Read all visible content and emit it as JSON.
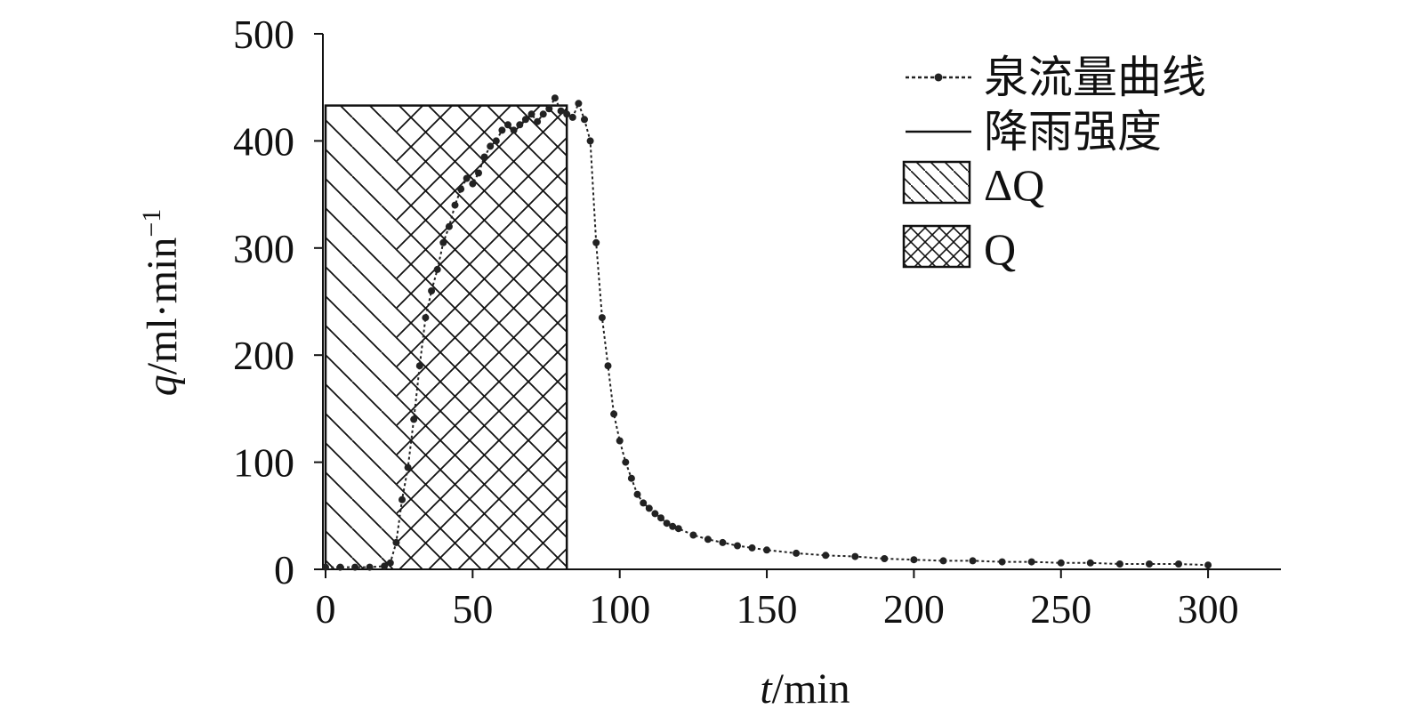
{
  "chart_data": {
    "type": "line",
    "xlabel": {
      "var": "t",
      "unit": "/min"
    },
    "ylabel": {
      "var": "q",
      "unit": "/ml·min",
      "sup": "−1"
    },
    "xlim": [
      0,
      325
    ],
    "ylim": [
      0,
      500
    ],
    "xticks": [
      "0",
      "50",
      "100",
      "150",
      "200",
      "250",
      "300"
    ],
    "xtick_values": [
      0,
      50,
      100,
      150,
      200,
      250,
      300
    ],
    "yticks": [
      "0",
      "100",
      "200",
      "300",
      "400",
      "500"
    ],
    "ytick_values": [
      0,
      100,
      200,
      300,
      400,
      500
    ],
    "legend_position": "top-right",
    "legend": {
      "flow": "泉流量曲线",
      "rain": "降雨强度",
      "dq": "ΔQ",
      "q": "Q"
    },
    "rainfall": {
      "start": 0,
      "end": 82,
      "intensity": 433
    },
    "flow_curve": {
      "x": [
        0,
        5,
        10,
        15,
        20,
        22,
        24,
        26,
        28,
        30,
        32,
        34,
        36,
        38,
        40,
        42,
        44,
        46,
        48,
        50,
        52,
        54,
        56,
        58,
        60,
        62,
        64,
        66,
        68,
        70,
        72,
        74,
        76,
        78,
        80,
        82,
        84,
        86,
        88,
        90,
        92,
        94,
        96,
        98,
        100,
        102,
        104,
        106,
        108,
        110,
        112,
        114,
        116,
        118,
        120,
        125,
        130,
        135,
        140,
        145,
        150,
        160,
        170,
        180,
        190,
        200,
        210,
        220,
        230,
        240,
        250,
        260,
        270,
        280,
        290,
        300
      ],
      "y": [
        2,
        2,
        2,
        2,
        3,
        6,
        25,
        65,
        95,
        140,
        190,
        235,
        260,
        280,
        305,
        320,
        340,
        355,
        365,
        360,
        370,
        385,
        395,
        400,
        410,
        415,
        410,
        415,
        420,
        425,
        418,
        425,
        430,
        440,
        428,
        425,
        422,
        435,
        420,
        400,
        305,
        235,
        190,
        145,
        120,
        100,
        85,
        70,
        62,
        57,
        52,
        48,
        43,
        40,
        38,
        32,
        28,
        25,
        22,
        20,
        18,
        15,
        13,
        12,
        10,
        9,
        8,
        8,
        7,
        7,
        6,
        6,
        5,
        5,
        5,
        4
      ]
    }
  }
}
